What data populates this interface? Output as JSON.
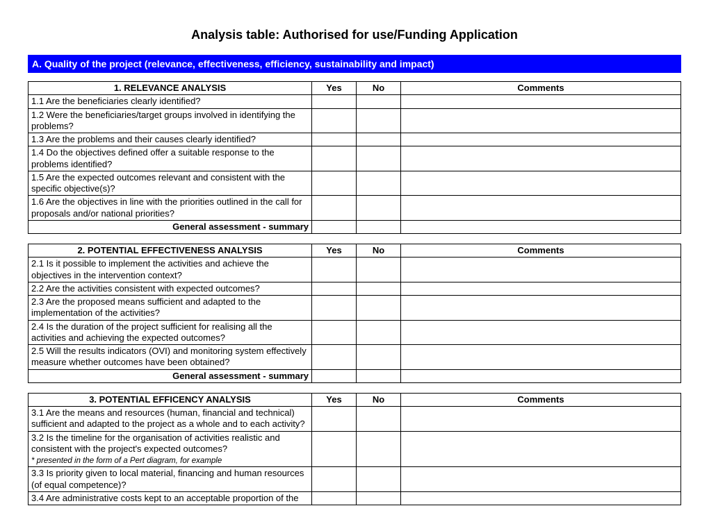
{
  "title": "Analysis table: Authorised for use/Funding Application",
  "sectionA": "A. Quality of the project (relevance, effectiveness, efficiency, sustainability and impact)",
  "cols": {
    "yes": "Yes",
    "no": "No",
    "comments": "Comments"
  },
  "summary": "General assessment - summary",
  "t1": {
    "header": "1.   RELEVANCE ANALYSIS",
    "r1": "1.1 Are the beneficiaries clearly identified?",
    "r2": "1.2 Were the beneficiaries/target groups involved in identifying the problems?",
    "r3": "1.3 Are the problems and their causes clearly identified?",
    "r4": "1.4 Do the objectives defined offer a suitable response to the problems identified?",
    "r5": "1.5 Are the expected outcomes relevant and consistent with the specific objective(s)?",
    "r6": "1.6 Are the objectives in line with the priorities outlined in the call for proposals and/or national priorities?"
  },
  "t2": {
    "header": "2. POTENTIAL EFFECTIVENESS ANALYSIS",
    "r1": "2.1 Is it possible to implement the activities and achieve the objectives in the intervention context?",
    "r2": "2.2 Are the activities consistent with expected outcomes?",
    "r3": "2.3 Are the proposed means sufficient and adapted to the implementation of the activities?",
    "r4": "2.4 Is the duration of the project sufficient for realising all the activities and achieving the expected outcomes?",
    "r5": "2.5 Will the results indicators (OVI) and monitoring system effectively measure whether outcomes have been obtained?"
  },
  "t3": {
    "header": "3. POTENTIAL EFFICENCY ANALYSIS",
    "r1": "3.1 Are the means and resources (human, financial and technical) sufficient and adapted to the project as a whole and to each activity?",
    "r2": "3.2 Is the timeline for the organisation of activities realistic and consistent with the project's expected outcomes?",
    "r2note": "* presented in the form of a Pert diagram, for example",
    "r3": "3.3 Is priority given to local material, financing and human resources (of equal competence)?",
    "r4": "3.4 Are administrative costs kept to an acceptable proportion of the"
  }
}
